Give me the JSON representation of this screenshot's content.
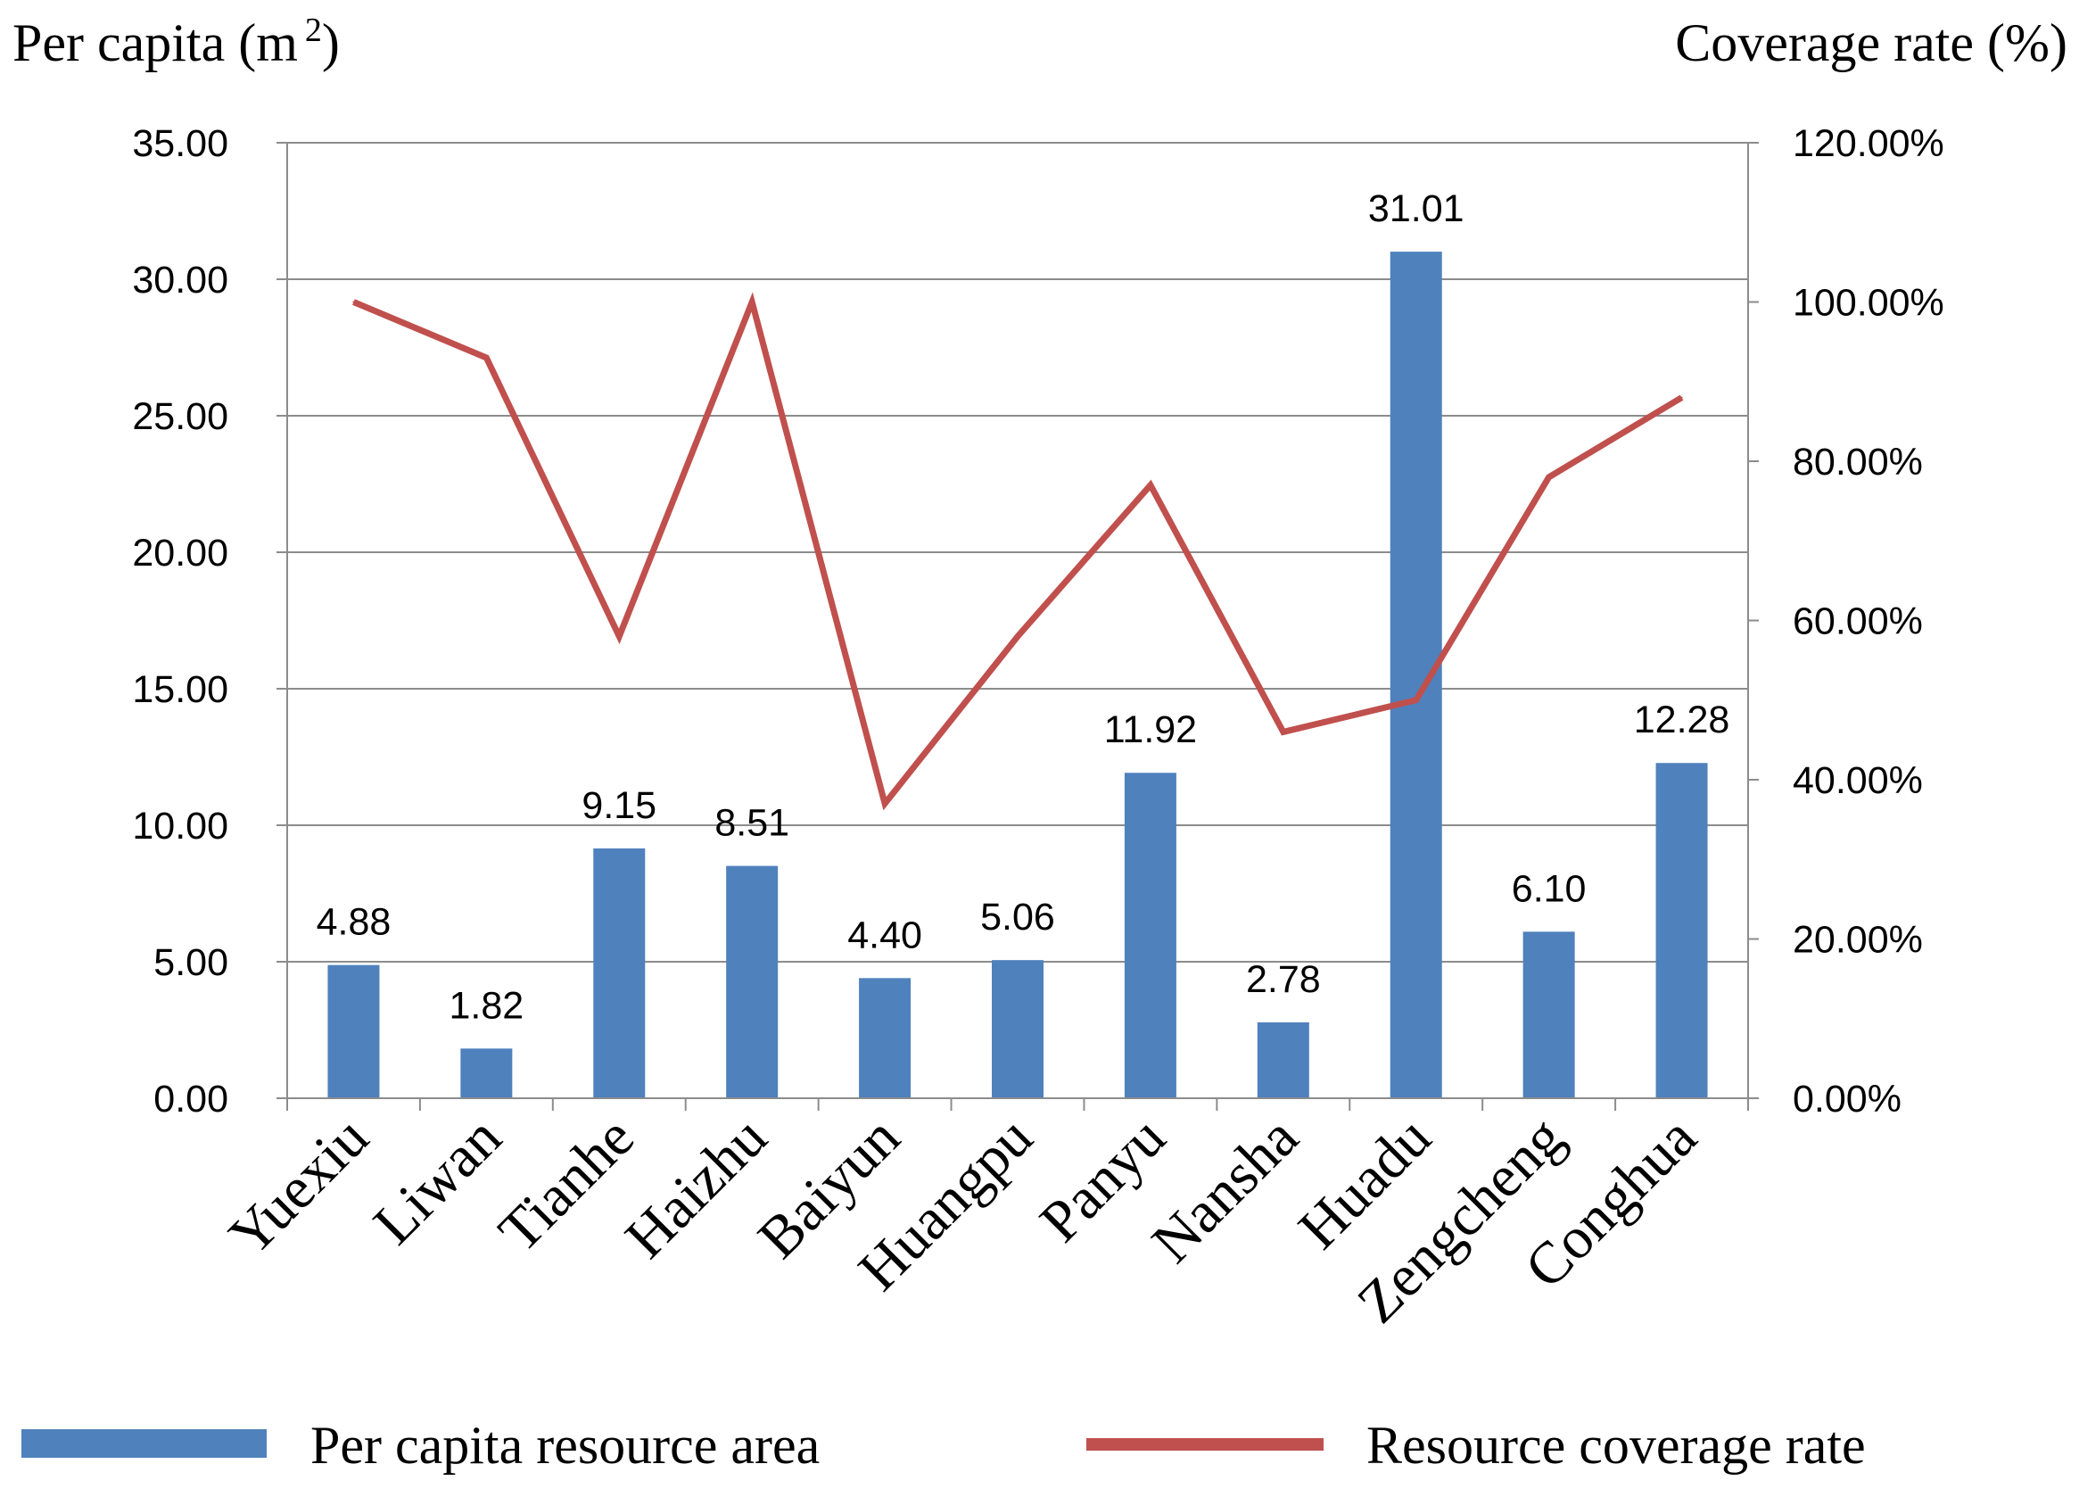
{
  "chart_data": {
    "type": "bar",
    "title": "",
    "categories": [
      "Yuexiu",
      "Liwan",
      "Tianhe",
      "Haizhu",
      "Baiyun",
      "Huangpu",
      "Panyu",
      "Nansha",
      "Huadu",
      "Zengcheng",
      "Conghua"
    ],
    "series": [
      {
        "name": "Per capita resource area",
        "type": "bar",
        "axis": "left",
        "color": "#4F81BD",
        "values": [
          4.88,
          1.82,
          9.15,
          8.51,
          4.4,
          5.06,
          11.92,
          2.78,
          31.01,
          6.1,
          12.28
        ],
        "labels": [
          "4.88",
          "1.82",
          "9.15",
          "8.51",
          "4.40",
          "5.06",
          "11.92",
          "2.78",
          "31.01",
          "6.10",
          "12.28"
        ]
      },
      {
        "name": "Resource coverage rate",
        "type": "line",
        "axis": "right",
        "color": "#C0504D",
        "values": [
          100,
          93,
          58,
          100,
          37,
          58,
          77,
          46,
          50,
          78,
          88
        ]
      }
    ],
    "ylabel": "Per capita (m 2)",
    "ylabel_main": "Per capita (m",
    "ylabel_superscript": "2",
    "ylabel_close": ")",
    "y2label": "Coverage rate (%)",
    "ylim": [
      0,
      35
    ],
    "y2lim": [
      0,
      120
    ],
    "yticks": [
      "0.00",
      "5.00",
      "10.00",
      "15.00",
      "20.00",
      "25.00",
      "30.00",
      "35.00"
    ],
    "y2ticks": [
      "0.00%",
      "20.00%",
      "40.00%",
      "60.00%",
      "80.00%",
      "100.00%",
      "120.00%"
    ],
    "grid": true,
    "legend_position": "bottom"
  }
}
